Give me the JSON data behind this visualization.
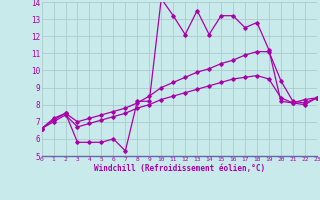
{
  "xlabel": "Windchill (Refroidissement éolien,°C)",
  "bg_color": "#c8eaea",
  "line_color": "#aa00aa",
  "grid_color": "#aacccc",
  "axis_line_color": "#8888aa",
  "xmin": 0,
  "xmax": 23,
  "ymin": 5,
  "ymax": 14,
  "series1_x": [
    0,
    1,
    2,
    3,
    4,
    5,
    6,
    7,
    8,
    9,
    10,
    11,
    12,
    13,
    14,
    15,
    16,
    17,
    18,
    19,
    20,
    21,
    22,
    23
  ],
  "series1_y": [
    6.6,
    7.1,
    7.5,
    5.8,
    5.8,
    5.8,
    6.0,
    5.3,
    8.2,
    8.2,
    14.2,
    13.2,
    12.1,
    13.5,
    12.1,
    13.2,
    13.2,
    12.5,
    12.8,
    11.2,
    8.2,
    8.1,
    8.3,
    8.4
  ],
  "series2_x": [
    0,
    1,
    2,
    3,
    4,
    5,
    6,
    7,
    8,
    9,
    10,
    11,
    12,
    13,
    14,
    15,
    16,
    17,
    18,
    19,
    20,
    21,
    22,
    23
  ],
  "series2_y": [
    6.6,
    7.2,
    7.5,
    7.0,
    7.2,
    7.4,
    7.6,
    7.8,
    8.1,
    8.5,
    9.0,
    9.3,
    9.6,
    9.9,
    10.1,
    10.4,
    10.6,
    10.9,
    11.1,
    11.1,
    9.4,
    8.2,
    8.1,
    8.4
  ],
  "series3_x": [
    0,
    1,
    2,
    3,
    4,
    5,
    6,
    7,
    8,
    9,
    10,
    11,
    12,
    13,
    14,
    15,
    16,
    17,
    18,
    19,
    20,
    21,
    22,
    23
  ],
  "series3_y": [
    6.6,
    7.0,
    7.4,
    6.7,
    6.9,
    7.1,
    7.3,
    7.5,
    7.8,
    8.0,
    8.3,
    8.5,
    8.7,
    8.9,
    9.1,
    9.3,
    9.5,
    9.6,
    9.7,
    9.5,
    8.4,
    8.1,
    8.0,
    8.4
  ]
}
